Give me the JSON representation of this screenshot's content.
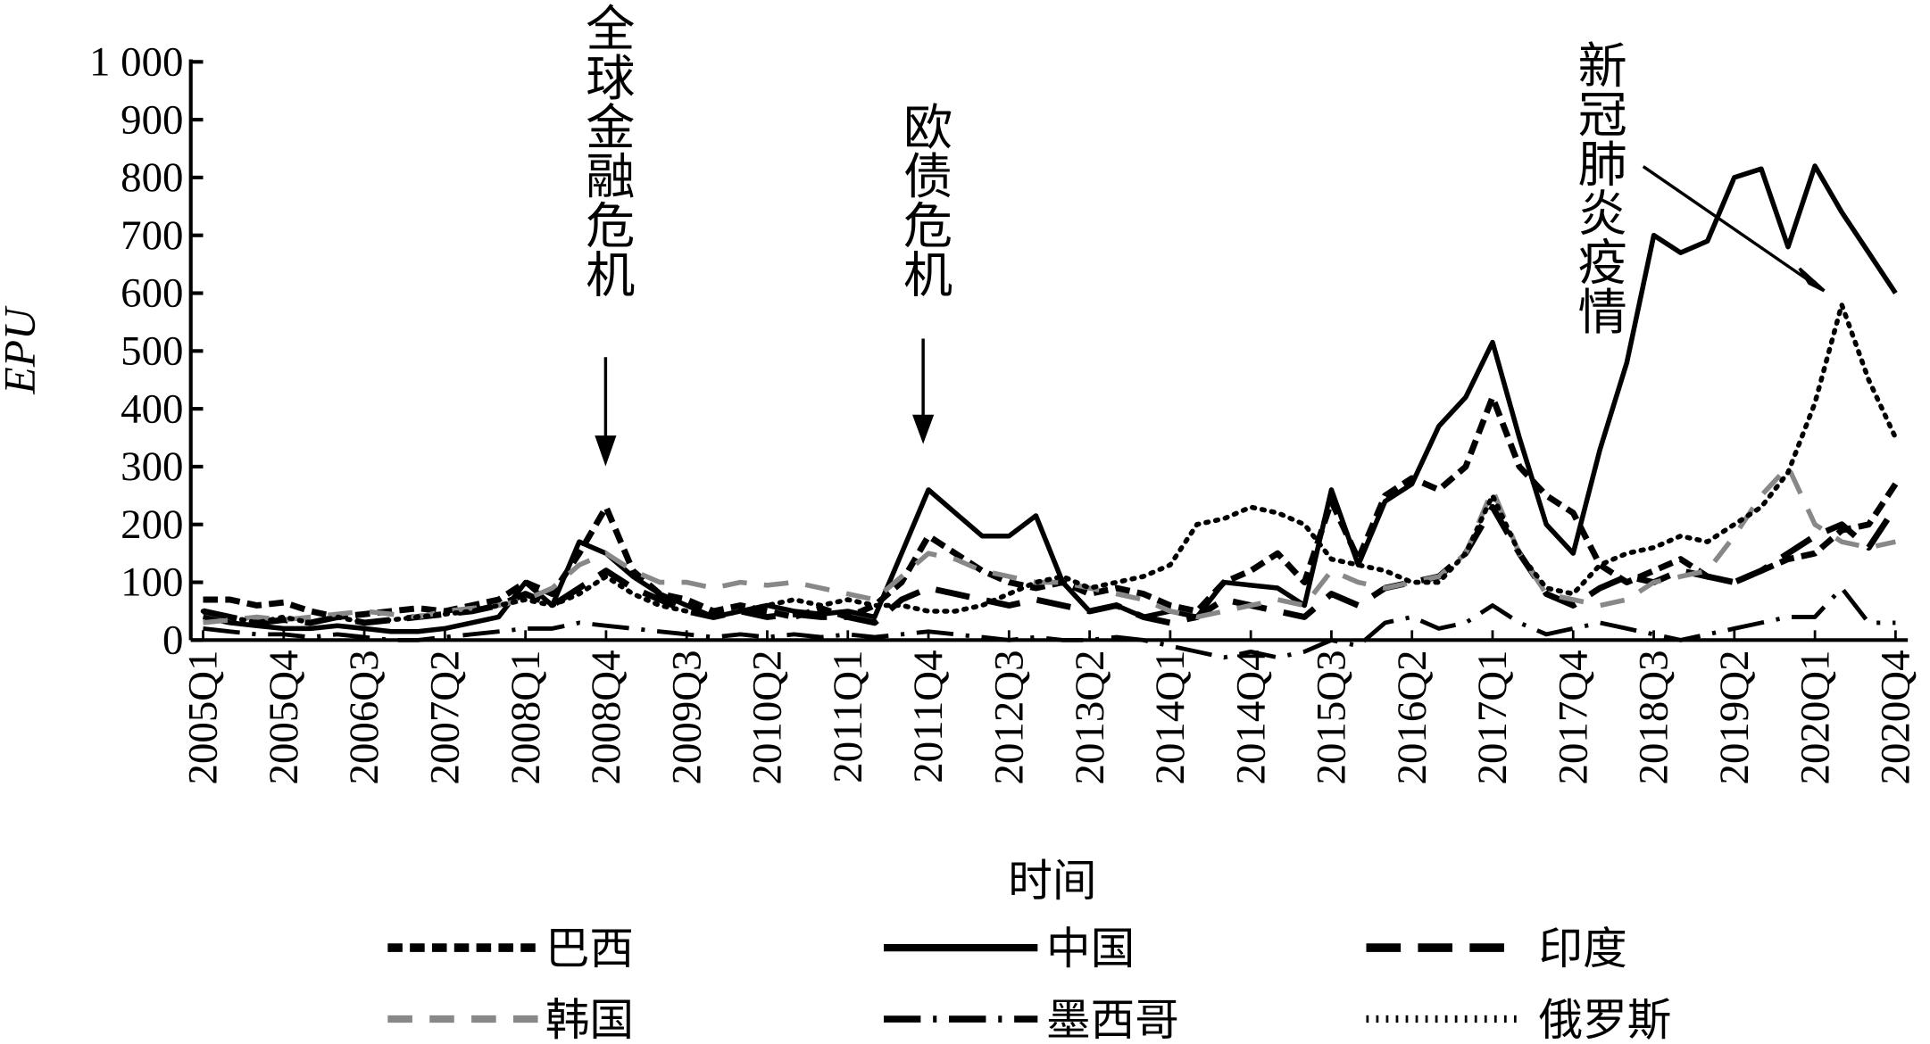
{
  "chart_data": {
    "type": "line",
    "y_label": "EPU",
    "x_label": "时间",
    "categories": [
      "2005Q1",
      null,
      null,
      "2005Q4",
      null,
      null,
      "2006Q3",
      null,
      null,
      "2007Q2",
      null,
      null,
      "2008Q1",
      null,
      null,
      "2008Q4",
      null,
      null,
      "2009Q3",
      null,
      null,
      "2010Q2",
      null,
      null,
      "2011Q1",
      null,
      null,
      "2011Q4",
      null,
      null,
      "2012Q3",
      null,
      null,
      "2013Q2",
      null,
      null,
      "2014Q1",
      null,
      null,
      "2014Q4",
      null,
      null,
      "2015Q3",
      null,
      null,
      "2016Q2",
      null,
      null,
      "2017Q1",
      null,
      null,
      "2017Q4",
      null,
      null,
      "2018Q3",
      null,
      null,
      "2019Q2",
      null,
      null,
      "2020Q1",
      null,
      null,
      "2020Q4"
    ],
    "ylim": [
      0,
      1000
    ],
    "yticks": [
      0,
      100,
      200,
      300,
      400,
      500,
      600,
      700,
      800,
      900,
      {
        "value": 1000,
        "label": "1 000"
      }
    ],
    "annotations": [
      {
        "text": "全球金融危机",
        "at": 15
      },
      {
        "text": "欧债危机",
        "at": 27
      },
      {
        "text": "新冠肺炎疫情",
        "at": 60
      }
    ],
    "series": [
      {
        "name": "巴西",
        "color": "#000000",
        "values": [
          70,
          70,
          60,
          65,
          50,
          40,
          45,
          50,
          55,
          50,
          60,
          70,
          100,
          80,
          150,
          230,
          120,
          80,
          70,
          50,
          60,
          50,
          40,
          55,
          40,
          60,
          100,
          180,
          150,
          120,
          100,
          90,
          100,
          80,
          90,
          80,
          60,
          50,
          100,
          120,
          150,
          100,
          240,
          140,
          250,
          280,
          260,
          300,
          420,
          300,
          250,
          220,
          130,
          100,
          120,
          140,
          110,
          100,
          120,
          140,
          150,
          190,
          200,
          270
        ]
      },
      {
        "name": "中国",
        "color": "#000000",
        "values": [
          40,
          30,
          25,
          20,
          20,
          25,
          20,
          15,
          15,
          20,
          30,
          40,
          100,
          60,
          170,
          150,
          110,
          80,
          60,
          40,
          50,
          60,
          50,
          45,
          50,
          40,
          150,
          260,
          220,
          180,
          180,
          215,
          100,
          50,
          60,
          40,
          50,
          40,
          100,
          95,
          90,
          60,
          260,
          130,
          240,
          270,
          370,
          420,
          515,
          350,
          200,
          150,
          330,
          480,
          700,
          670,
          690,
          800,
          815,
          680,
          820,
          740,
          670,
          600
        ]
      },
      {
        "name": "印度",
        "color": "#000000",
        "values": [
          50,
          40,
          30,
          35,
          30,
          40,
          30,
          35,
          40,
          45,
          50,
          60,
          80,
          60,
          90,
          120,
          90,
          70,
          50,
          40,
          50,
          40,
          45,
          40,
          40,
          30,
          70,
          90,
          80,
          70,
          60,
          70,
          60,
          50,
          60,
          40,
          30,
          40,
          70,
          60,
          50,
          40,
          80,
          60,
          90,
          100,
          110,
          150,
          230,
          150,
          80,
          60,
          90,
          110,
          100,
          120,
          110,
          100,
          120,
          150,
          180,
          200,
          160,
          230
        ]
      },
      {
        "name": "韩国",
        "color": "#888888",
        "values": [
          30,
          35,
          40,
          35,
          40,
          45,
          50,
          45,
          40,
          50,
          55,
          60,
          70,
          90,
          130,
          150,
          120,
          100,
          100,
          90,
          100,
          95,
          100,
          90,
          80,
          70,
          110,
          150,
          140,
          120,
          110,
          100,
          100,
          90,
          80,
          70,
          50,
          40,
          50,
          60,
          70,
          60,
          120,
          100,
          90,
          100,
          110,
          150,
          260,
          150,
          80,
          70,
          60,
          70,
          100,
          110,
          120,
          180,
          250,
          300,
          200,
          170,
          160,
          170
        ]
      },
      {
        "name": "墨西哥",
        "color": "#000000",
        "values": [
          20,
          15,
          10,
          10,
          5,
          10,
          5,
          0,
          0,
          5,
          10,
          15,
          20,
          20,
          30,
          25,
          20,
          15,
          10,
          5,
          10,
          5,
          10,
          5,
          10,
          5,
          10,
          15,
          10,
          5,
          0,
          5,
          0,
          0,
          5,
          0,
          -10,
          -20,
          -30,
          -20,
          -30,
          -20,
          0,
          -10,
          30,
          40,
          20,
          30,
          60,
          30,
          10,
          20,
          30,
          20,
          10,
          0,
          10,
          20,
          30,
          40,
          40,
          90,
          30,
          30
        ]
      },
      {
        "name": "俄罗斯",
        "color": "#000000",
        "values": [
          50,
          40,
          30,
          40,
          30,
          40,
          30,
          35,
          40,
          45,
          50,
          60,
          70,
          60,
          80,
          110,
          80,
          60,
          50,
          40,
          50,
          60,
          70,
          60,
          70,
          60,
          60,
          50,
          50,
          60,
          80,
          100,
          110,
          90,
          100,
          110,
          130,
          200,
          210,
          230,
          220,
          200,
          140,
          130,
          120,
          100,
          100,
          150,
          250,
          150,
          90,
          80,
          130,
          150,
          160,
          180,
          170,
          200,
          230,
          290,
          410,
          580,
          450,
          350
        ]
      }
    ]
  }
}
